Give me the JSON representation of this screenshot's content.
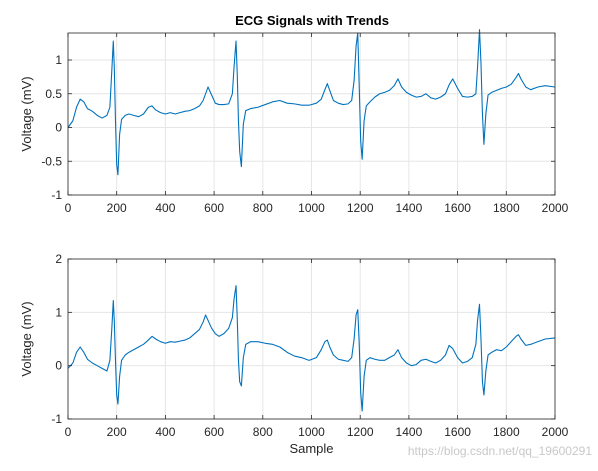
{
  "title": "ECG Signals with Trends",
  "watermark": "https://blog.csdn.net/qq_19600291",
  "colors": {
    "line": "#0072BD",
    "axis": "#262626",
    "grid": "#e6e6e6",
    "background": "#ffffff"
  },
  "chart_data": [
    {
      "type": "line",
      "title": "ECG Signals with Trends",
      "xlabel": "",
      "ylabel": "Voltage (mV)",
      "xlim": [
        0,
        2000
      ],
      "ylim": [
        -1,
        1.4
      ],
      "xticks": [
        0,
        200,
        400,
        600,
        800,
        1000,
        1200,
        1400,
        1600,
        1800,
        2000
      ],
      "yticks": [
        -1,
        -0.5,
        0,
        0.5,
        1
      ],
      "grid": true,
      "series": [
        {
          "x": [
            0,
            20,
            35,
            50,
            65,
            80,
            100,
            120,
            140,
            160,
            172,
            180,
            186,
            190,
            195,
            200,
            205,
            212,
            220,
            235,
            250,
            270,
            290,
            310,
            330,
            345,
            360,
            380,
            400,
            420,
            440,
            460,
            480,
            500,
            520,
            540,
            555,
            565,
            575,
            590,
            605,
            620,
            640,
            660,
            675,
            682,
            690,
            695,
            700,
            705,
            712,
            720,
            730,
            750,
            780,
            810,
            840,
            870,
            900,
            930,
            960,
            990,
            1020,
            1040,
            1055,
            1065,
            1075,
            1090,
            1110,
            1130,
            1150,
            1165,
            1175,
            1183,
            1190,
            1196,
            1202,
            1208,
            1216,
            1225,
            1240,
            1260,
            1280,
            1300,
            1320,
            1340,
            1355,
            1370,
            1390,
            1410,
            1430,
            1450,
            1470,
            1490,
            1510,
            1530,
            1550,
            1565,
            1580,
            1600,
            1620,
            1640,
            1660,
            1675,
            1682,
            1690,
            1696,
            1702,
            1708,
            1716,
            1725,
            1740,
            1760,
            1780,
            1800,
            1820,
            1840,
            1850,
            1860,
            1880,
            1900,
            1930,
            1960,
            2000
          ],
          "values": [
            0.0,
            0.1,
            0.3,
            0.42,
            0.38,
            0.28,
            0.24,
            0.18,
            0.14,
            0.18,
            0.3,
            0.85,
            1.28,
            0.9,
            0.1,
            -0.55,
            -0.7,
            -0.1,
            0.12,
            0.18,
            0.2,
            0.18,
            0.16,
            0.2,
            0.3,
            0.32,
            0.26,
            0.22,
            0.2,
            0.22,
            0.2,
            0.22,
            0.24,
            0.25,
            0.28,
            0.32,
            0.4,
            0.5,
            0.6,
            0.48,
            0.36,
            0.34,
            0.34,
            0.35,
            0.5,
            0.9,
            1.28,
            0.8,
            0.1,
            -0.35,
            -0.58,
            0.05,
            0.25,
            0.28,
            0.3,
            0.34,
            0.38,
            0.4,
            0.36,
            0.35,
            0.33,
            0.33,
            0.36,
            0.42,
            0.56,
            0.65,
            0.55,
            0.4,
            0.36,
            0.34,
            0.35,
            0.4,
            0.7,
            1.2,
            1.4,
            0.6,
            -0.2,
            -0.47,
            0.1,
            0.32,
            0.38,
            0.45,
            0.5,
            0.52,
            0.55,
            0.62,
            0.72,
            0.6,
            0.52,
            0.48,
            0.45,
            0.46,
            0.5,
            0.44,
            0.42,
            0.45,
            0.5,
            0.63,
            0.72,
            0.58,
            0.46,
            0.45,
            0.46,
            0.5,
            0.9,
            1.45,
            0.95,
            0.2,
            -0.25,
            0.2,
            0.48,
            0.52,
            0.55,
            0.58,
            0.6,
            0.64,
            0.74,
            0.8,
            0.72,
            0.6,
            0.56,
            0.6,
            0.62,
            0.6
          ]
        }
      ]
    },
    {
      "type": "line",
      "title": "",
      "xlabel": "Sample",
      "ylabel": "Voltage (mV)",
      "xlim": [
        0,
        2000
      ],
      "ylim": [
        -1,
        2
      ],
      "xticks": [
        0,
        200,
        400,
        600,
        800,
        1000,
        1200,
        1400,
        1600,
        1800,
        2000
      ],
      "yticks": [
        -1,
        0,
        1,
        2
      ],
      "grid": true,
      "series": [
        {
          "x": [
            0,
            20,
            35,
            50,
            65,
            80,
            100,
            120,
            140,
            160,
            172,
            180,
            186,
            190,
            195,
            200,
            205,
            212,
            220,
            235,
            250,
            270,
            290,
            310,
            330,
            345,
            360,
            380,
            400,
            420,
            440,
            460,
            480,
            500,
            520,
            540,
            555,
            565,
            575,
            590,
            605,
            620,
            640,
            660,
            675,
            682,
            690,
            695,
            700,
            705,
            712,
            720,
            730,
            750,
            780,
            810,
            840,
            870,
            900,
            930,
            960,
            990,
            1020,
            1040,
            1055,
            1065,
            1075,
            1090,
            1110,
            1130,
            1150,
            1165,
            1175,
            1183,
            1190,
            1196,
            1202,
            1208,
            1216,
            1225,
            1240,
            1260,
            1280,
            1300,
            1320,
            1340,
            1355,
            1370,
            1390,
            1410,
            1430,
            1450,
            1470,
            1490,
            1510,
            1530,
            1550,
            1565,
            1580,
            1600,
            1620,
            1640,
            1660,
            1675,
            1682,
            1690,
            1696,
            1702,
            1708,
            1716,
            1725,
            1740,
            1760,
            1780,
            1800,
            1820,
            1840,
            1850,
            1860,
            1880,
            1900,
            1930,
            1960,
            2000
          ],
          "values": [
            -0.05,
            0.05,
            0.25,
            0.35,
            0.25,
            0.12,
            0.05,
            0.0,
            -0.05,
            -0.1,
            0.1,
            0.7,
            1.22,
            0.85,
            0.1,
            -0.55,
            -0.72,
            -0.2,
            0.1,
            0.2,
            0.25,
            0.3,
            0.35,
            0.4,
            0.48,
            0.55,
            0.5,
            0.45,
            0.42,
            0.45,
            0.44,
            0.46,
            0.48,
            0.52,
            0.6,
            0.68,
            0.82,
            0.95,
            0.85,
            0.7,
            0.6,
            0.55,
            0.6,
            0.7,
            0.9,
            1.25,
            1.5,
            0.9,
            0.1,
            -0.3,
            -0.38,
            0.15,
            0.4,
            0.45,
            0.45,
            0.42,
            0.4,
            0.35,
            0.25,
            0.18,
            0.15,
            0.1,
            0.15,
            0.3,
            0.45,
            0.48,
            0.35,
            0.2,
            0.12,
            0.1,
            0.08,
            0.15,
            0.5,
            0.95,
            1.05,
            0.4,
            -0.5,
            -0.85,
            -0.2,
            0.1,
            0.15,
            0.12,
            0.1,
            0.1,
            0.15,
            0.2,
            0.3,
            0.15,
            0.05,
            0.0,
            0.02,
            0.1,
            0.12,
            0.08,
            0.05,
            0.1,
            0.2,
            0.38,
            0.32,
            0.15,
            0.05,
            0.08,
            0.15,
            0.4,
            0.85,
            1.15,
            0.5,
            -0.3,
            -0.55,
            -0.1,
            0.2,
            0.25,
            0.3,
            0.28,
            0.35,
            0.45,
            0.55,
            0.58,
            0.5,
            0.38,
            0.4,
            0.45,
            0.5,
            0.52
          ]
        }
      ]
    }
  ]
}
